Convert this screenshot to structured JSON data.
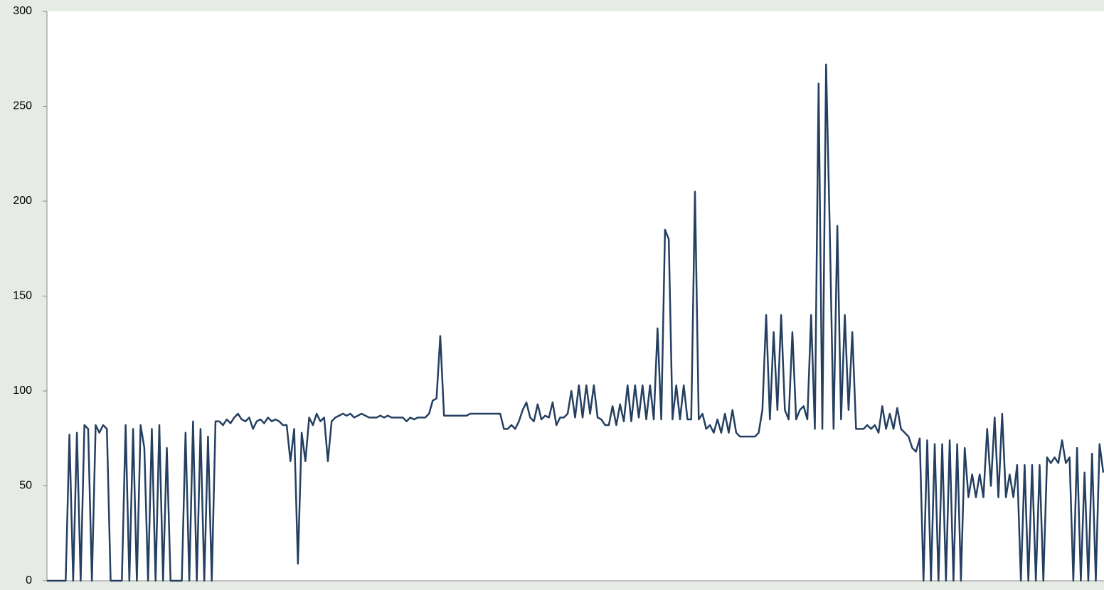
{
  "chart_data": {
    "type": "line",
    "color": "#243f60",
    "ylim": [
      0,
      300
    ],
    "yticks": [
      0,
      50,
      100,
      150,
      200,
      250,
      300
    ],
    "values": [
      0,
      0,
      0,
      0,
      0,
      0,
      77,
      0,
      78,
      0,
      82,
      80,
      0,
      82,
      78,
      82,
      80,
      0,
      0,
      0,
      0,
      82,
      0,
      80,
      0,
      82,
      70,
      0,
      80,
      0,
      82,
      0,
      70,
      0,
      0,
      0,
      0,
      78,
      0,
      84,
      0,
      80,
      0,
      76,
      0,
      84,
      84,
      82,
      85,
      83,
      86,
      88,
      85,
      84,
      86,
      80,
      84,
      85,
      83,
      86,
      84,
      85,
      84,
      82,
      82,
      63,
      80,
      9,
      78,
      63,
      86,
      82,
      88,
      84,
      86,
      63,
      84,
      86,
      87,
      88,
      87,
      88,
      86,
      87,
      88,
      87,
      86,
      86,
      86,
      87,
      86,
      87,
      86,
      86,
      86,
      86,
      84,
      86,
      85,
      86,
      86,
      86,
      88,
      95,
      96,
      129,
      87,
      87,
      87,
      87,
      87,
      87,
      87,
      88,
      88,
      88,
      88,
      88,
      88,
      88,
      88,
      88,
      80,
      80,
      82,
      80,
      84,
      90,
      94,
      86,
      84,
      93,
      85,
      87,
      86,
      94,
      82,
      86,
      86,
      88,
      100,
      86,
      103,
      86,
      103,
      88,
      103,
      86,
      85,
      82,
      82,
      92,
      82,
      93,
      84,
      103,
      84,
      103,
      86,
      103,
      85,
      103,
      85,
      133,
      85,
      185,
      180,
      85,
      103,
      85,
      103,
      85,
      85,
      205,
      85,
      88,
      80,
      82,
      78,
      85,
      78,
      88,
      78,
      90,
      78,
      76,
      76,
      76,
      76,
      76,
      78,
      90,
      140,
      85,
      131,
      90,
      140,
      90,
      85,
      131,
      85,
      90,
      92,
      85,
      140,
      80,
      262,
      80,
      272,
      183,
      80,
      187,
      85,
      140,
      90,
      131,
      80,
      80,
      80,
      82,
      80,
      82,
      78,
      92,
      80,
      88,
      80,
      91,
      80,
      78,
      76,
      70,
      68,
      75,
      0,
      74,
      0,
      72,
      0,
      72,
      0,
      74,
      0,
      72,
      0,
      70,
      44,
      56,
      44,
      56,
      44,
      80,
      50,
      86,
      44,
      88,
      44,
      56,
      44,
      61,
      0,
      61,
      0,
      61,
      0,
      61,
      0,
      65,
      62,
      65,
      62,
      74,
      62,
      65,
      0,
      70,
      0,
      57,
      0,
      67,
      0,
      72,
      57
    ]
  }
}
